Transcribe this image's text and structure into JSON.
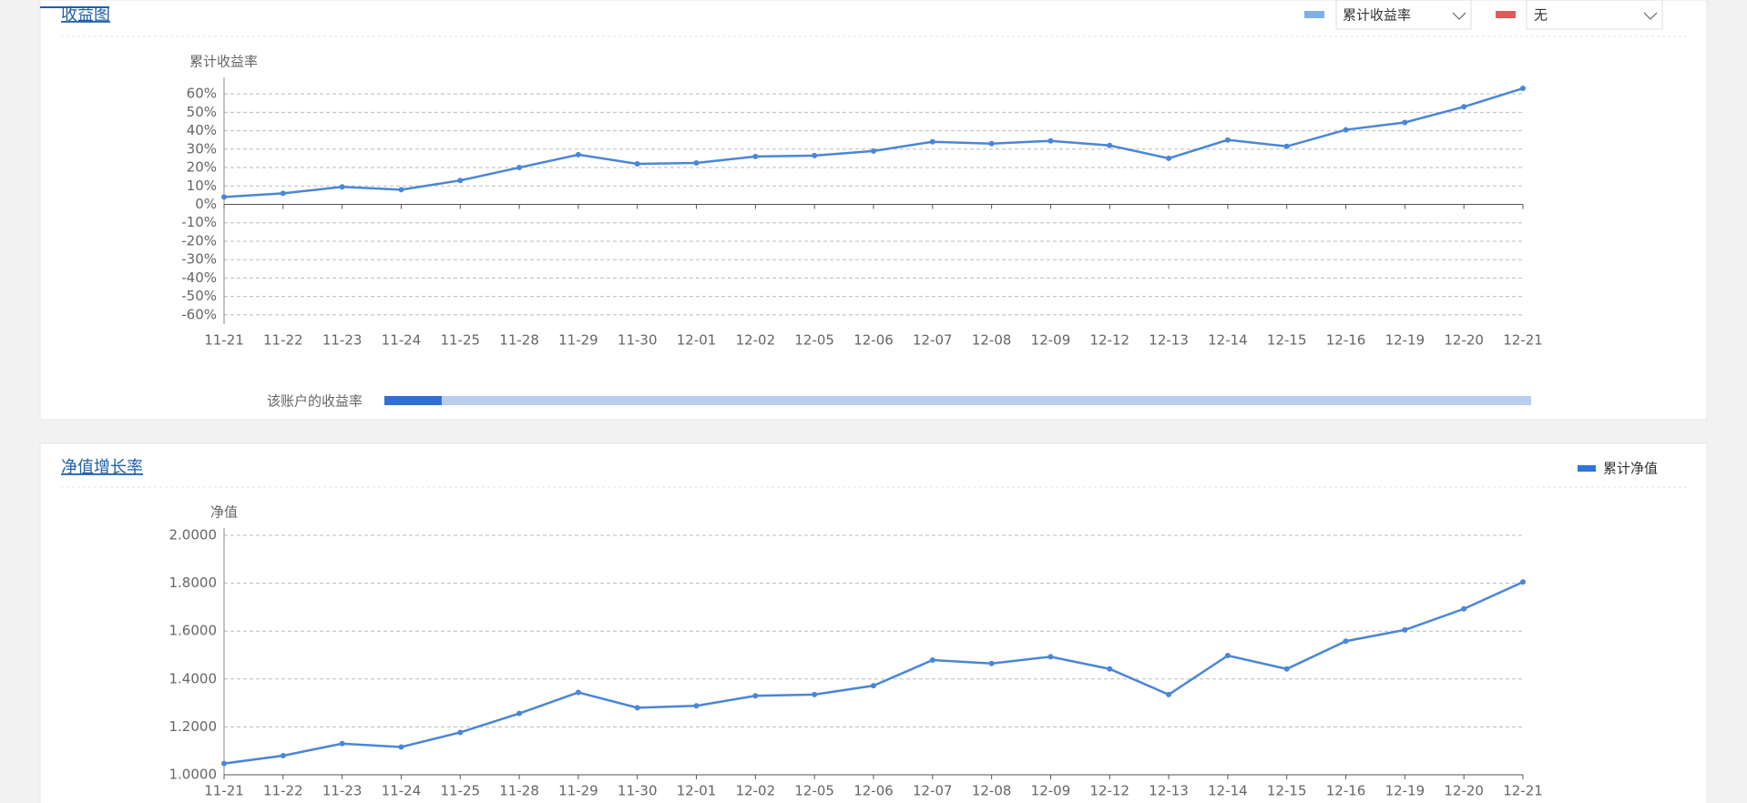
{
  "chart_data": [
    {
      "type": "line",
      "title": "收益图",
      "y_label": "累计收益率",
      "slider_label": "该账户的收益率",
      "categories": [
        "11-21",
        "11-22",
        "11-23",
        "11-24",
        "11-25",
        "11-28",
        "11-29",
        "11-30",
        "12-01",
        "12-02",
        "12-05",
        "12-06",
        "12-07",
        "12-08",
        "12-09",
        "12-12",
        "12-13",
        "12-14",
        "12-15",
        "12-16",
        "12-19",
        "12-20",
        "12-21"
      ],
      "series": [
        {
          "name": "累计收益率",
          "color": "#4a86d8",
          "legend_color": "#7fb0ea",
          "values": [
            4,
            6,
            9.5,
            8,
            13,
            20,
            27,
            22,
            22.5,
            26,
            26.5,
            29,
            34,
            33,
            34.5,
            32,
            25,
            35,
            31.5,
            40.5,
            44.5,
            53,
            63
          ]
        }
      ],
      "compare": {
        "name": "无",
        "color": "#e05a5a"
      },
      "ylim": [
        -65,
        65
      ],
      "yticks": [
        {
          "value": 60,
          "label": "60%"
        },
        {
          "value": 50,
          "label": "50%"
        },
        {
          "value": 40,
          "label": "40%"
        },
        {
          "value": 30,
          "label": "30%"
        },
        {
          "value": 20,
          "label": "20%"
        },
        {
          "value": 10,
          "label": "10%"
        },
        {
          "value": 0,
          "label": "0%"
        },
        {
          "value": -10,
          "label": "-10%"
        },
        {
          "value": -20,
          "label": "-20%"
        },
        {
          "value": -30,
          "label": "-30%"
        },
        {
          "value": -40,
          "label": "-40%"
        },
        {
          "value": -50,
          "label": "-50%"
        },
        {
          "value": -60,
          "label": "-60%"
        }
      ],
      "grid": true
    },
    {
      "type": "line",
      "title": "净值增长率",
      "y_label": "净值",
      "categories": [
        "11-21",
        "11-22",
        "11-23",
        "11-24",
        "11-25",
        "11-28",
        "11-29",
        "11-30",
        "12-01",
        "12-02",
        "12-05",
        "12-06",
        "12-07",
        "12-08",
        "12-09",
        "12-12",
        "12-13",
        "12-14",
        "12-15",
        "12-16",
        "12-19",
        "12-20",
        "12-21"
      ],
      "series": [
        {
          "name": "累计净值",
          "color": "#4a86d8",
          "legend_color": "#2f74d8",
          "values": [
            1.047,
            1.08,
            1.13,
            1.116,
            1.177,
            1.256,
            1.344,
            1.28,
            1.288,
            1.33,
            1.335,
            1.372,
            1.479,
            1.465,
            1.493,
            1.442,
            1.335,
            1.498,
            1.442,
            1.558,
            1.605,
            1.693,
            1.805
          ]
        }
      ],
      "ylim": [
        1,
        2
      ],
      "yticks": [
        {
          "value": 2,
          "label": "2.0000"
        },
        {
          "value": 1.8,
          "label": "1.8000"
        },
        {
          "value": 1.6,
          "label": "1.6000"
        },
        {
          "value": 1.4,
          "label": "1.4000"
        },
        {
          "value": 1.2,
          "label": "1.2000"
        },
        {
          "value": 1,
          "label": "1.0000"
        }
      ],
      "grid": true
    }
  ]
}
